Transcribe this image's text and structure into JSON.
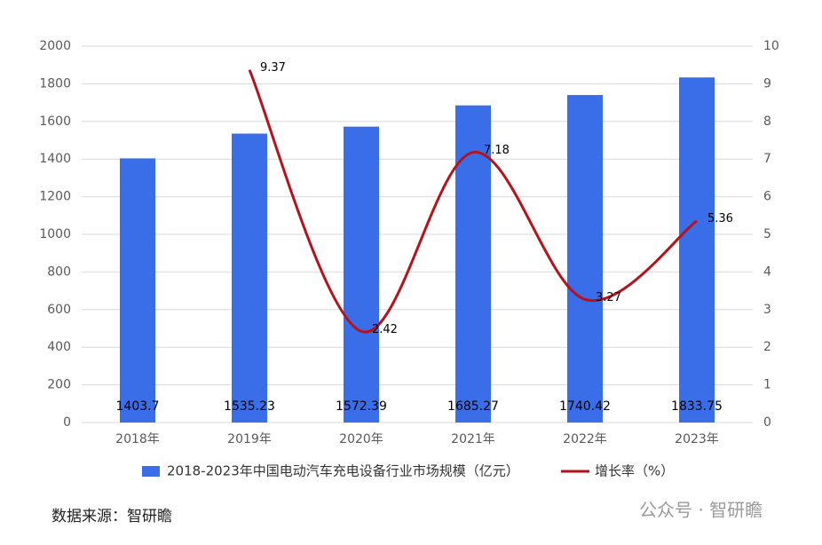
{
  "chart_data": {
    "type": "bar-line",
    "categories": [
      "2018年",
      "2019年",
      "2020年",
      "2021年",
      "2022年",
      "2023年"
    ],
    "series": [
      {
        "name": "2018-2023年中国电动汽车充电设备行业市场规模（亿元）",
        "type": "bar",
        "color": "#3a6ee8",
        "values": [
          1403.7,
          1535.23,
          1572.39,
          1685.27,
          1740.42,
          1833.75
        ]
      },
      {
        "name": "增长率（%）",
        "type": "line",
        "axis": "y2",
        "color": "#b5121b",
        "values": [
          null,
          9.37,
          2.42,
          7.18,
          3.27,
          5.36
        ]
      }
    ],
    "ylim": [
      0,
      2000
    ],
    "yticks": [
      0,
      200,
      400,
      600,
      800,
      1000,
      1200,
      1400,
      1600,
      1800,
      2000
    ],
    "y2lim": [
      0,
      10
    ],
    "y2ticks": [
      0,
      1,
      2,
      3,
      4,
      5,
      6,
      7,
      8,
      9,
      10
    ],
    "grid": true,
    "legend": "bottom"
  },
  "source": "数据来源：智研瞻",
  "watermark": "公众号 · 智研瞻"
}
